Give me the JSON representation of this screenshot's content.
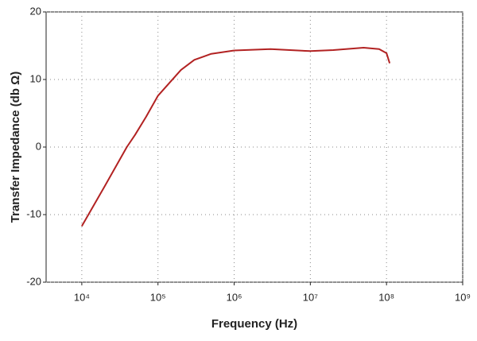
{
  "chart_data": {
    "type": "line",
    "xscale": "log",
    "xlabel": "Frequency (Hz)",
    "ylabel": "Transfer Impedance (db Ω)",
    "x": [
      10000,
      20000,
      39000,
      50000,
      70000,
      100000,
      200000,
      300000,
      500000,
      1000000,
      3000000,
      10000000,
      20000000,
      50000000,
      80000000,
      100000000,
      110000000
    ],
    "series": [
      {
        "name": "Transfer Impedance",
        "color": "#b22222",
        "values": [
          -11.7,
          -5.8,
          0,
          1.8,
          4.5,
          7.6,
          11.4,
          12.9,
          13.8,
          14.3,
          14.5,
          14.2,
          14.35,
          14.7,
          14.5,
          13.9,
          12.4
        ]
      }
    ],
    "xlim": [
      3400,
      1000000000
    ],
    "xticks": [
      {
        "value": 10000,
        "label": "10⁴"
      },
      {
        "value": 100000,
        "label": "10⁵"
      },
      {
        "value": 1000000,
        "label": "10⁶"
      },
      {
        "value": 10000000,
        "label": "10⁷"
      },
      {
        "value": 100000000,
        "label": "10⁸"
      },
      {
        "value": 1000000000,
        "label": "10⁹"
      }
    ],
    "ylim": [
      -20,
      20
    ],
    "yticks": [
      -20,
      -10,
      0,
      10,
      20
    ],
    "grid": true
  }
}
